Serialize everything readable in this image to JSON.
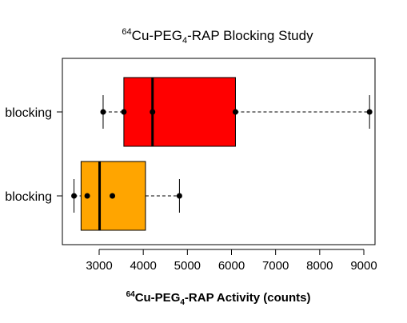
{
  "chart_data": {
    "type": "box",
    "orientation": "horizontal",
    "title": {
      "prefix": "64",
      "main": "Cu-PEG",
      "sub": "4",
      "suffix": "-RAP Blocking Study"
    },
    "xlabel": {
      "prefix": "64",
      "main": "Cu-PEG",
      "sub": "4",
      "suffix": "-RAP Activity (counts)"
    },
    "xlim": [
      2300,
      9250
    ],
    "xticks": [
      3000,
      4000,
      5000,
      6000,
      7000,
      8000,
      9000
    ],
    "xtick_labels": [
      "3000",
      "4000",
      "5000",
      "6000",
      "7000",
      "8000",
      "9000"
    ],
    "categories": [
      "blocking",
      "blocking"
    ],
    "boxes": [
      {
        "label": "blocking",
        "color": "#ff0000",
        "q1": 3560,
        "median": 4210,
        "q3": 6090,
        "whisker_low": 3090,
        "whisker_high": 9130,
        "points": [
          3090,
          3560,
          4210,
          6090,
          9130
        ]
      },
      {
        "label": "blocking",
        "color": "#ffa500",
        "q1": 2590,
        "median": 3010,
        "q3": 4050,
        "whisker_low": 2430,
        "whisker_high": 4820,
        "points": [
          2430,
          2730,
          3300,
          4820
        ]
      }
    ]
  }
}
